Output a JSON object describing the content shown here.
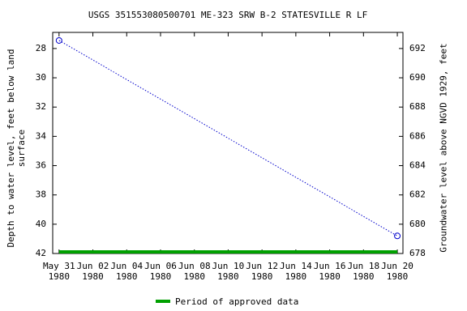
{
  "chart_data": {
    "type": "line",
    "title": "USGS 351553080500701 ME-323 SRW B-2 STATESVILLE R LF",
    "y_label": "Depth to water level, feet below land\nsurface",
    "y2_label": "Groundwater level above NGVD 1929, feet",
    "x": [
      "1980-05-31",
      "1980-06-20"
    ],
    "series": [
      {
        "color": "#0000cc",
        "values": [
          27.45,
          40.8
        ]
      }
    ],
    "approved_periods": [
      {
        "name": "Period of approved data",
        "color": "#00a000",
        "start": "1980-05-31",
        "end": "1980-06-20"
      }
    ],
    "xlim": [
      "1980-05-30T15:00",
      "1980-06-20T08:00"
    ],
    "xticks": [
      {
        "value": "1980-05-31",
        "label": "May 31\n1980"
      },
      {
        "value": "1980-06-02",
        "label": "Jun 02\n1980"
      },
      {
        "value": "1980-06-04",
        "label": "Jun 04\n1980"
      },
      {
        "value": "1980-06-06",
        "label": "Jun 06\n1980"
      },
      {
        "value": "1980-06-08",
        "label": "Jun 08\n1980"
      },
      {
        "value": "1980-06-10",
        "label": "Jun 10\n1980"
      },
      {
        "value": "1980-06-12",
        "label": "Jun 12\n1980"
      },
      {
        "value": "1980-06-14",
        "label": "Jun 14\n1980"
      },
      {
        "value": "1980-06-16",
        "label": "Jun 16\n1980"
      },
      {
        "value": "1980-06-18",
        "label": "Jun 18\n1980"
      },
      {
        "value": "1980-06-20",
        "label": "Jun 20\n1980"
      }
    ],
    "ylim": [
      26.9,
      42
    ],
    "yticks": [
      28,
      30,
      32,
      34,
      36,
      38,
      40,
      42
    ],
    "y_inverted": true,
    "y2lim": [
      693.1,
      678
    ],
    "y2ticks": [
      678,
      680,
      682,
      684,
      686,
      688,
      690,
      692
    ]
  }
}
